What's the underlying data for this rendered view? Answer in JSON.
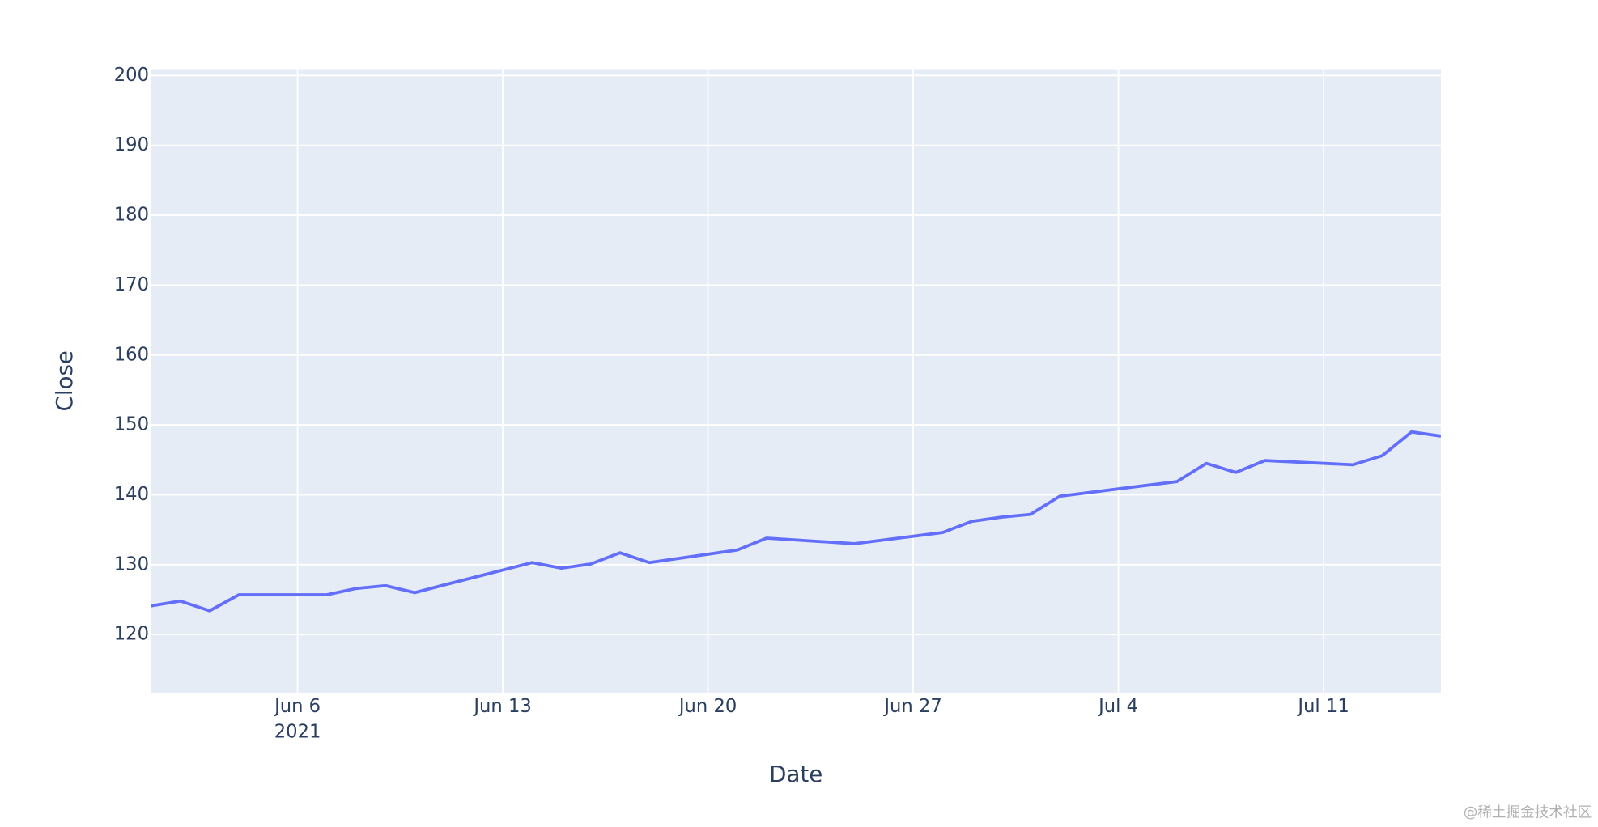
{
  "chart_data": {
    "type": "line",
    "xlabel": "Date",
    "ylabel": "Close",
    "x": [
      "2021-06-01",
      "2021-06-02",
      "2021-06-03",
      "2021-06-04",
      "2021-06-07",
      "2021-06-08",
      "2021-06-09",
      "2021-06-10",
      "2021-06-11",
      "2021-06-14",
      "2021-06-15",
      "2021-06-16",
      "2021-06-17",
      "2021-06-18",
      "2021-06-21",
      "2021-06-22",
      "2021-06-25",
      "2021-06-28",
      "2021-06-29",
      "2021-06-30",
      "2021-07-01",
      "2021-07-02",
      "2021-07-06",
      "2021-07-07",
      "2021-07-08",
      "2021-07-09",
      "2021-07-12",
      "2021-07-13",
      "2021-07-14",
      "2021-07-15"
    ],
    "values": [
      124.1,
      124.8,
      123.4,
      125.7,
      125.7,
      126.6,
      127.0,
      126.0,
      127.1,
      130.3,
      129.5,
      130.1,
      131.7,
      130.3,
      132.1,
      133.8,
      133.0,
      134.6,
      136.2,
      136.8,
      137.2,
      139.8,
      141.9,
      144.5,
      143.2,
      144.9,
      144.3,
      145.6,
      149.0,
      148.4
    ],
    "color": "#636efa",
    "xlim": [
      "2021-06-01",
      "2021-07-15"
    ],
    "xticks": [
      {
        "value": "2021-06-06",
        "label": "Jun 6"
      },
      {
        "value": "2021-06-13",
        "label": "Jun 13"
      },
      {
        "value": "2021-06-20",
        "label": "Jun 20"
      },
      {
        "value": "2021-06-27",
        "label": "Jun 27"
      },
      {
        "value": "2021-07-04",
        "label": "Jul 4"
      },
      {
        "value": "2021-07-11",
        "label": "Jul 11"
      }
    ],
    "xtick_year": "2021",
    "ylim": [
      111.7,
      200.9
    ],
    "yticks": [
      120,
      130,
      140,
      150,
      160,
      170,
      180,
      190,
      200
    ],
    "grid": true
  },
  "watermark": "@稀土掘金技术社区"
}
